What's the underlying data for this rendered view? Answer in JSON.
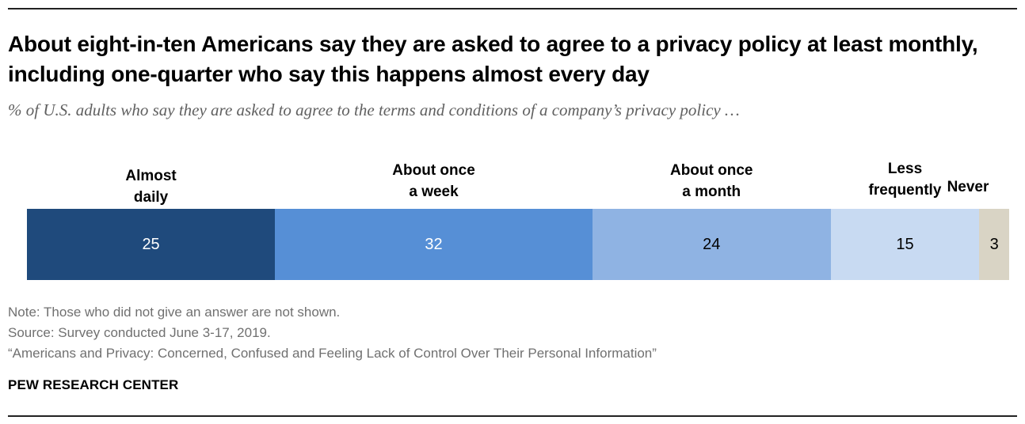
{
  "title": "About eight-in-ten Americans say they are asked to agree to a privacy policy at least monthly, including one-quarter who say this happens almost every day",
  "subtitle": "% of U.S. adults who say they are asked to agree to the terms and conditions of a company’s privacy policy …",
  "chart_data": {
    "type": "bar",
    "orientation": "horizontal-stacked",
    "title": "About eight-in-ten Americans say they are asked to agree to a privacy policy at least monthly, including one-quarter who say this happens almost every day",
    "subtitle": "% of U.S. adults who say they are asked to agree to the terms and conditions of a company’s privacy policy …",
    "categories": [
      "Almost\ndaily",
      "About once\na week",
      "About once\na month",
      "Less\nfrequently",
      "Never"
    ],
    "values": [
      25,
      32,
      24,
      15,
      3
    ],
    "colors": [
      "#1f4a7c",
      "#568fd6",
      "#8fb3e3",
      "#c8daf2",
      "#d9d4c5"
    ],
    "label_colors": [
      "#ffffff",
      "#ffffff",
      "#000000",
      "#000000",
      "#000000"
    ],
    "xlim": [
      0,
      99
    ],
    "grid": false,
    "legend": "labels above segments"
  },
  "notes": {
    "note": "Note: Those who did not give an answer are not shown.",
    "source": "Source: Survey conducted June 3-17, 2019.",
    "report": "“Americans and Privacy: Concerned, Confused and Feeling Lack of Control Over Their Personal Information”"
  },
  "brand": "PEW RESEARCH CENTER"
}
